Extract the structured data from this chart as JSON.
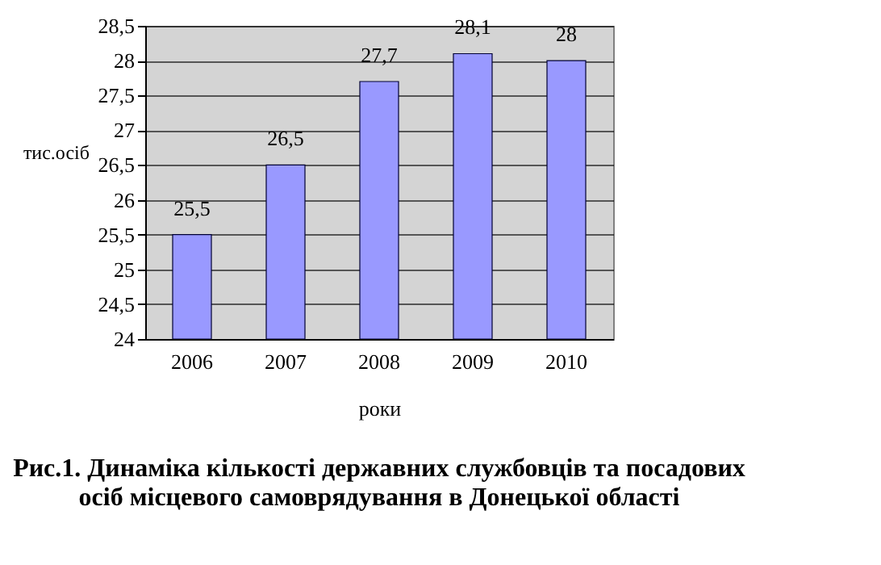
{
  "chart_data": {
    "type": "bar",
    "title": "Рис.1. Динаміка кількості державних службовців та посадових осіб місцевого самоврядування в Донецької області",
    "xlabel": "роки",
    "ylabel": "тис.осіб",
    "categories": [
      "2006",
      "2007",
      "2008",
      "2009",
      "2010"
    ],
    "values": [
      25.5,
      26.5,
      27.7,
      28.1,
      28
    ],
    "value_labels": [
      "25,5",
      "26,5",
      "27,7",
      "28,1",
      "28"
    ],
    "color": "#9999ff",
    "ylim": [
      24,
      28.5
    ],
    "yticks": [
      24,
      {
        "value": 24.5,
        "label": "24,5"
      },
      25,
      {
        "value": 25.5,
        "label": "25,5"
      },
      26,
      {
        "value": 26.5,
        "label": "26,5"
      },
      27,
      {
        "value": 27.5,
        "label": "27,5"
      },
      28,
      {
        "value": 28.5,
        "label": "28,5"
      }
    ],
    "grid": "y"
  }
}
